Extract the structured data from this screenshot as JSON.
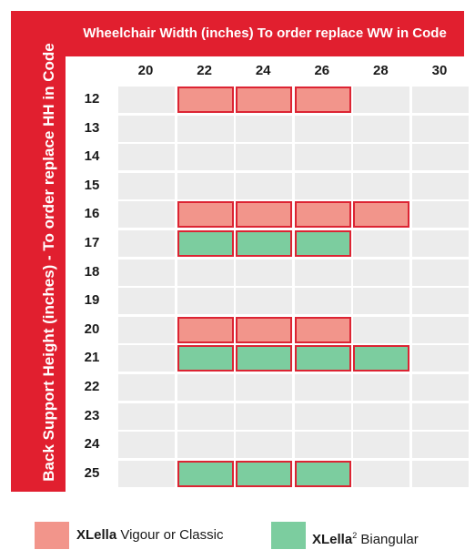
{
  "header": {
    "top_title": "Wheelchair Width (inches)  To order replace WW in Code",
    "side_title": "Back Support  Height (inches) - To order replace HH in Code"
  },
  "table": {
    "columns": [
      "20",
      "22",
      "24",
      "26",
      "28",
      "30"
    ],
    "rows": [
      {
        "label": "12",
        "cells": [
          "",
          "vigour",
          "vigour",
          "vigour",
          "",
          ""
        ]
      },
      {
        "label": "13",
        "cells": [
          "",
          "",
          "",
          "",
          "",
          ""
        ]
      },
      {
        "label": "14",
        "cells": [
          "",
          "",
          "",
          "",
          "",
          ""
        ]
      },
      {
        "label": "15",
        "cells": [
          "",
          "",
          "",
          "",
          "",
          ""
        ]
      },
      {
        "label": "16",
        "cells": [
          "",
          "vigour",
          "vigour",
          "vigour",
          "vigour",
          ""
        ]
      },
      {
        "label": "17",
        "cells": [
          "",
          "biangular",
          "biangular",
          "biangular",
          "",
          ""
        ]
      },
      {
        "label": "18",
        "cells": [
          "",
          "",
          "",
          "",
          "",
          ""
        ]
      },
      {
        "label": "19",
        "cells": [
          "",
          "",
          "",
          "",
          "",
          ""
        ]
      },
      {
        "label": "20",
        "cells": [
          "",
          "vigour",
          "vigour",
          "vigour",
          "",
          ""
        ]
      },
      {
        "label": "21",
        "cells": [
          "",
          "biangular",
          "biangular",
          "biangular",
          "biangular",
          ""
        ]
      },
      {
        "label": "22",
        "cells": [
          "",
          "",
          "",
          "",
          "",
          ""
        ]
      },
      {
        "label": "23",
        "cells": [
          "",
          "",
          "",
          "",
          "",
          ""
        ]
      },
      {
        "label": "24",
        "cells": [
          "",
          "",
          "",
          "",
          "",
          ""
        ]
      },
      {
        "label": "25",
        "cells": [
          "",
          "biangular",
          "biangular",
          "biangular",
          "",
          ""
        ]
      }
    ]
  },
  "legend": {
    "vigour_brand": "XLella",
    "vigour_text": " Vigour or Classic",
    "biangular_brand": "XLella",
    "biangular_sup": "2",
    "biangular_text": " Biangular"
  },
  "colors": {
    "banner": "#e11f2f",
    "vigour": "#f2958b",
    "biangular": "#7ccd9f",
    "outline": "#dc2433",
    "empty_cell": "#ececec"
  }
}
